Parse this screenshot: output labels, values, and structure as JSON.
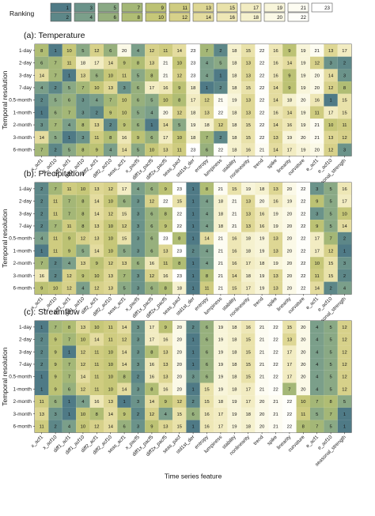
{
  "figure": {
    "x_axis_title": "Time series feature",
    "y_axis_title": "Temporal resolution"
  },
  "legend": {
    "title": "Ranking",
    "values": [
      1,
      2,
      3,
      4,
      5,
      6,
      7,
      8,
      9,
      10,
      11,
      12,
      13,
      14,
      15,
      16,
      17,
      18,
      19,
      20,
      21,
      22,
      23
    ],
    "colors": [
      "#4f7a86",
      "#5d8788",
      "#6b938a",
      "#7b9f8a",
      "#8aa985",
      "#97b07d",
      "#a4b777",
      "#b0bd74",
      "#bcc274",
      "#c6c778",
      "#cfcc80",
      "#d7d18a",
      "#ded794",
      "#e4dc9f",
      "#e9e2aa",
      "#eee7b6",
      "#f2ecc2",
      "#f5f1ce",
      "#f8f5da",
      "#fbf9e7",
      "#fdfcf2",
      "#fefefa",
      "#ffffff"
    ]
  },
  "chart_data": [
    {
      "type": "heatmap",
      "title": "(a): Temperature",
      "xlabel": "Time series feature",
      "ylabel": "Temporal resolution",
      "x": [
        "x_acf1",
        "x_acf10",
        "diff1_acf1",
        "diff1_acf10",
        "diff2_acf1",
        "diff2_acf10",
        "seas_acf1",
        "x_pacf5",
        "diff1x_pacf5",
        "diff2x_pacf5",
        "seas_pacf",
        "std1st_der",
        "entropy",
        "lumpiness",
        "stability",
        "nonlinearity",
        "trend",
        "spike",
        "linearity",
        "curvature",
        "e_acf1",
        "e_acf10",
        "seasonal_strength"
      ],
      "y": [
        "1-day",
        "2-day",
        "3-day",
        "7-day",
        "0.5-month",
        "1-month",
        "2-month",
        "3-month",
        "6-month"
      ],
      "values": [
        [
          8,
          1,
          10,
          5,
          12,
          6,
          20,
          4,
          12,
          11,
          14,
          23,
          7,
          2,
          18,
          15,
          22,
          16,
          9,
          19,
          21,
          13,
          17
        ],
        [
          6,
          7,
          11,
          18,
          17,
          14,
          9,
          8,
          13,
          21,
          10,
          23,
          4,
          5,
          18,
          13,
          22,
          16,
          14,
          19,
          12,
          3,
          2
        ],
        [
          14,
          7,
          1,
          13,
          6,
          10,
          11,
          5,
          8,
          21,
          12,
          23,
          4,
          1,
          18,
          13,
          22,
          16,
          9,
          19,
          20,
          14,
          3
        ],
        [
          4,
          2,
          5,
          7,
          10,
          13,
          3,
          6,
          17,
          16,
          9,
          18,
          1,
          2,
          18,
          15,
          22,
          14,
          9,
          19,
          20,
          12,
          8
        ],
        [
          2,
          5,
          6,
          3,
          4,
          7,
          10,
          6,
          5,
          10,
          8,
          17,
          12,
          21,
          19,
          13,
          22,
          14,
          18,
          20,
          16,
          1,
          15
        ],
        [
          1,
          6,
          7,
          3,
          2,
          9,
          10,
          5,
          4,
          20,
          12,
          18,
          13,
          22,
          18,
          13,
          22,
          16,
          14,
          19,
          11,
          17,
          15
        ],
        [
          3,
          7,
          4,
          8,
          13,
          2,
          9,
          6,
          1,
          14,
          5,
          19,
          18,
          12,
          18,
          15,
          22,
          14,
          16,
          19,
          21,
          10,
          11
        ],
        [
          14,
          5,
          1,
          3,
          11,
          8,
          16,
          9,
          6,
          17,
          10,
          18,
          7,
          2,
          18,
          15,
          22,
          13,
          19,
          20,
          21,
          13,
          12
        ],
        [
          7,
          2,
          5,
          8,
          9,
          4,
          14,
          5,
          10,
          13,
          11,
          23,
          6,
          22,
          18,
          16,
          21,
          14,
          17,
          19,
          20,
          12,
          3
        ]
      ]
    },
    {
      "type": "heatmap",
      "title": "(b): Precipitation",
      "xlabel": "Time series feature",
      "ylabel": "Temporal resolution",
      "x": [
        "x_acf1",
        "x_acf10",
        "diff1_acf1",
        "diff1_acf10",
        "diff2_acf1",
        "diff2_acf10",
        "seas_acf1",
        "x_pacf5",
        "diff1x_pacf5",
        "diff2x_pacf5",
        "seas_pacf",
        "std1st_der",
        "entropy",
        "lumpiness",
        "stability",
        "nonlinearity",
        "trend",
        "spike",
        "linearity",
        "curvature",
        "e_acf1",
        "e_acf10",
        "seasonal_strength"
      ],
      "y": [
        "1-day",
        "2-day",
        "3-day",
        "7-day",
        "0.5-month",
        "1-month",
        "2-month",
        "3-month",
        "6-month"
      ],
      "values": [
        [
          2,
          7,
          11,
          10,
          13,
          12,
          17,
          4,
          6,
          9,
          23,
          1,
          8,
          21,
          15,
          19,
          18,
          13,
          20,
          22,
          3,
          5,
          16
        ],
        [
          2,
          11,
          7,
          8,
          14,
          10,
          6,
          3,
          12,
          22,
          15,
          1,
          4,
          18,
          21,
          13,
          20,
          16,
          19,
          22,
          9,
          5,
          17
        ],
        [
          2,
          11,
          7,
          8,
          14,
          12,
          15,
          3,
          6,
          8,
          22,
          1,
          4,
          18,
          21,
          13,
          16,
          19,
          20,
          22,
          3,
          5,
          10
        ],
        [
          2,
          7,
          11,
          8,
          13,
          10,
          12,
          3,
          6,
          9,
          22,
          1,
          4,
          18,
          21,
          13,
          16,
          19,
          20,
          22,
          9,
          5,
          14
        ],
        [
          4,
          11,
          9,
          12,
          13,
          10,
          15,
          3,
          6,
          23,
          8,
          1,
          14,
          21,
          16,
          18,
          19,
          13,
          20,
          22,
          17,
          7,
          2
        ],
        [
          1,
          11,
          9,
          5,
          14,
          10,
          5,
          3,
          6,
          13,
          23,
          2,
          4,
          21,
          16,
          18,
          19,
          13,
          20,
          22,
          17,
          12,
          1
        ],
        [
          7,
          2,
          4,
          13,
          9,
          12,
          13,
          6,
          16,
          11,
          8,
          1,
          4,
          21,
          16,
          17,
          18,
          19,
          20,
          22,
          10,
          15,
          3
        ],
        [
          16,
          2,
          12,
          9,
          10,
          13,
          7,
          3,
          12,
          16,
          23,
          1,
          8,
          21,
          14,
          18,
          19,
          13,
          20,
          22,
          11,
          15,
          2
        ],
        [
          9,
          10,
          12,
          4,
          12,
          13,
          5,
          3,
          6,
          8,
          18,
          1,
          11,
          21,
          15,
          17,
          19,
          13,
          20,
          22,
          14,
          2,
          4
        ]
      ]
    },
    {
      "type": "heatmap",
      "title": "(c): Streamflow",
      "xlabel": "Time series feature",
      "ylabel": "Temporal resolution",
      "x": [
        "x_acf1",
        "x_acf10",
        "diff1_acf1",
        "diff1_acf10",
        "diff2_acf1",
        "diff2_acf10",
        "seas_acf1",
        "x_pacf5",
        "diff1x_pacf5",
        "diff2x_pacf5",
        "seas_pacf",
        "std1st_der",
        "entropy",
        "lumpiness",
        "stability",
        "nonlinearity",
        "trend",
        "spike",
        "linearity",
        "curvature",
        "e_acf1",
        "e_acf10",
        "seasonal_strength"
      ],
      "y": [
        "1-day",
        "2-day",
        "3-day",
        "7-day",
        "0.5-month",
        "1-month",
        "2-month",
        "3-month",
        "6-month"
      ],
      "values": [
        [
          1,
          7,
          8,
          13,
          10,
          11,
          14,
          3,
          17,
          9,
          20,
          2,
          6,
          19,
          18,
          16,
          21,
          22,
          15,
          20,
          4,
          5,
          12
        ],
        [
          2,
          9,
          7,
          10,
          14,
          11,
          12,
          3,
          17,
          16,
          20,
          1,
          6,
          19,
          18,
          15,
          21,
          22,
          13,
          20,
          4,
          5,
          12
        ],
        [
          2,
          9,
          1,
          12,
          11,
          10,
          14,
          3,
          8,
          13,
          20,
          1,
          6,
          19,
          18,
          15,
          21,
          22,
          17,
          20,
          4,
          5,
          12
        ],
        [
          2,
          9,
          7,
          12,
          11,
          10,
          14,
          3,
          16,
          13,
          20,
          1,
          6,
          19,
          18,
          15,
          21,
          22,
          17,
          20,
          4,
          5,
          12
        ],
        [
          1,
          9,
          7,
          14,
          11,
          10,
          8,
          2,
          16,
          13,
          20,
          3,
          6,
          19,
          18,
          15,
          21,
          22,
          17,
          20,
          4,
          5,
          12
        ],
        [
          1,
          9,
          6,
          12,
          11,
          10,
          14,
          3,
          8,
          16,
          20,
          1,
          15,
          19,
          18,
          17,
          21,
          22,
          7,
          20,
          4,
          5,
          12
        ],
        [
          11,
          6,
          1,
          4,
          16,
          13,
          1,
          3,
          14,
          9,
          12,
          2,
          15,
          18,
          19,
          17,
          20,
          21,
          22,
          10,
          7,
          8,
          5
        ],
        [
          13,
          3,
          1,
          10,
          8,
          14,
          9,
          2,
          12,
          4,
          15,
          6,
          16,
          17,
          19,
          18,
          20,
          21,
          22,
          11,
          5,
          7,
          1
        ],
        [
          11,
          2,
          4,
          10,
          12,
          14,
          6,
          3,
          9,
          13,
          15,
          1,
          16,
          17,
          19,
          18,
          20,
          21,
          22,
          8,
          7,
          5,
          1
        ]
      ]
    }
  ]
}
